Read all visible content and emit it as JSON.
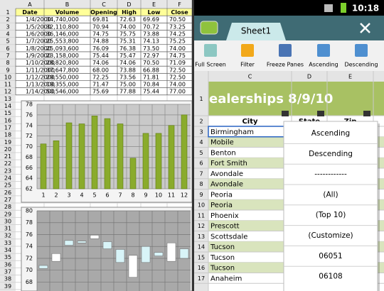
{
  "left_sheet": {
    "columns": [
      "A",
      "B",
      "C",
      "D",
      "E",
      "F"
    ],
    "row_numbers": [
      1,
      2,
      3,
      4,
      5,
      6,
      7,
      8,
      9,
      10,
      11,
      12,
      13,
      14,
      15,
      16,
      17,
      18,
      19,
      20,
      21,
      22,
      23,
      24,
      25,
      26,
      27,
      28,
      29,
      30,
      31,
      32,
      33,
      34,
      35,
      36,
      37,
      38,
      39
    ],
    "table": {
      "header": [
        "Date",
        "Volume",
        "Opening",
        "High",
        "Low",
        "Close"
      ],
      "rows": [
        [
          "1/4/2000",
          "34,740,000",
          "69.81",
          "72.63",
          "69.69",
          "70.50"
        ],
        [
          "1/5/2000",
          "32,110,800",
          "70.94",
          "74.00",
          "70.72",
          "73.25"
        ],
        [
          "1/6/2000",
          "36,146,000",
          "74.75",
          "75.75",
          "73.88",
          "74.25"
        ],
        [
          "1/7/2000",
          "25,553,800",
          "74.88",
          "75.31",
          "74.13",
          "75.25"
        ],
        [
          "1/8/2000",
          "25,093,600",
          "76.09",
          "76.38",
          "73.50",
          "74.00"
        ],
        [
          "1/9/2000",
          "23,158,000",
          "75.44",
          "75.47",
          "72.97",
          "74.75"
        ],
        [
          "1/10/2000",
          "28,820,800",
          "74.06",
          "74.06",
          "70.50",
          "71.09"
        ],
        [
          "1/11/2000",
          "37,647,800",
          "68.00",
          "73.88",
          "66.88",
          "72.50"
        ],
        [
          "1/12/2000",
          "29,550,000",
          "72.25",
          "73.56",
          "71.81",
          "72.50"
        ],
        [
          "1/13/2000",
          "19,355,000",
          "71.47",
          "75.00",
          "70.84",
          "74.00"
        ],
        [
          "1/14/2000",
          "50,546,000",
          "75.69",
          "77.88",
          "75.44",
          "77.00"
        ]
      ]
    },
    "bar_chart": {
      "type": "bar",
      "categories": [
        "1",
        "2",
        "3",
        "4",
        "5",
        "6",
        "7",
        "8",
        "9",
        "10",
        "11",
        "12"
      ],
      "values": [
        70.5,
        71.1,
        74.5,
        74.3,
        75.8,
        75.3,
        74.3,
        67.8,
        72.5,
        72.5,
        74.0,
        76.0
      ],
      "color": "#8aab2c",
      "ylim": [
        62,
        78
      ],
      "yticks": [
        62,
        64,
        66,
        68,
        70,
        72,
        74,
        76,
        78
      ],
      "grid": true
    },
    "candle_chart": {
      "type": "candlestick",
      "open": [
        70.3,
        71.5,
        74.2,
        74.6,
        75.3,
        73.6,
        71.3,
        68.8,
        71.3,
        72.4,
        71.5,
        72.0
      ],
      "close": [
        70.8,
        72.8,
        75.0,
        74.9,
        75.9,
        74.8,
        73.5,
        72.5,
        74.0,
        73.0,
        74.6,
        73.6
      ],
      "ylim": [
        66.5,
        80
      ],
      "yticks": [
        68,
        70,
        72,
        74,
        76,
        78,
        80
      ],
      "grid": true
    }
  },
  "right_app": {
    "time": "10:18",
    "tab": "Sheet1",
    "toolbar": [
      "Full Screen",
      "Filter",
      "Freeze Panes",
      "Ascending",
      "Descending"
    ],
    "columns": [
      "C",
      "D",
      "E"
    ],
    "title": "ealerships 8/9/10",
    "headers": [
      "City",
      "State",
      "Zip"
    ],
    "row_numbers": [
      1,
      2,
      3,
      4,
      5,
      6,
      7,
      8,
      9,
      10,
      11,
      12,
      13,
      14,
      15,
      16,
      17
    ],
    "cities": [
      "Birmingham",
      "Mobile",
      "Benton",
      "Fort Smith",
      "Avondale",
      "Avondale",
      "Peoria",
      "Peoria",
      "Phoenix",
      "Prescott",
      "Scottsdale",
      "Tucson",
      "Tucson",
      "Tucson",
      "Anaheim"
    ],
    "menu": [
      "Ascending",
      "Descending",
      "------------",
      "(All)",
      "(Top 10)",
      "(Customize)",
      "06051",
      "06108"
    ]
  }
}
